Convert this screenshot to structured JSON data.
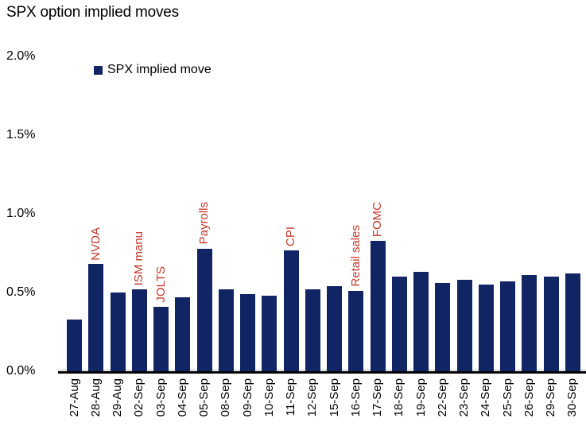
{
  "title": "SPX option implied moves",
  "legend": {
    "label": "SPX implied move"
  },
  "colors": {
    "bar": "#112463",
    "annotation": "#C4382B",
    "axis": "#000000",
    "baseline_gray": "#BFBFBF",
    "text": "#000000",
    "background": "#FFFFFF"
  },
  "chart_data": {
    "type": "bar",
    "title": "SPX option implied moves",
    "legend_entries": [
      "SPX implied move"
    ],
    "legend_position": "top-left",
    "grid": false,
    "ylabel": "",
    "xlabel": "",
    "unit": "%",
    "ylim": [
      0.0,
      2.0
    ],
    "ytick_step": 0.5,
    "yticks": [
      "2.0%",
      "1.5%",
      "1.0%",
      "0.5%",
      "0.0%"
    ],
    "categories": [
      "27-Aug",
      "28-Aug",
      "29-Aug",
      "02-Sep",
      "03-Sep",
      "04-Sep",
      "05-Sep",
      "08-Sep",
      "09-Sep",
      "10-Sep",
      "11-Sep",
      "12-Sep",
      "15-Sep",
      "16-Sep",
      "17-Sep",
      "18-Sep",
      "19-Sep",
      "22-Sep",
      "23-Sep",
      "24-Sep",
      "25-Sep",
      "26-Sep",
      "29-Sep",
      "30-Sep"
    ],
    "values": [
      0.33,
      0.68,
      0.5,
      0.52,
      0.41,
      0.47,
      0.78,
      0.52,
      0.49,
      0.48,
      0.77,
      0.52,
      0.54,
      0.51,
      0.83,
      0.6,
      0.63,
      0.56,
      0.58,
      0.55,
      0.57,
      0.61,
      0.6,
      0.62
    ],
    "annotations": [
      {
        "category": "28-Aug",
        "label": "NVDA"
      },
      {
        "category": "02-Sep",
        "label": "ISM manu"
      },
      {
        "category": "03-Sep",
        "label": "JOLTS"
      },
      {
        "category": "05-Sep",
        "label": "Payrolls"
      },
      {
        "category": "11-Sep",
        "label": "CPI"
      },
      {
        "category": "16-Sep",
        "label": "Retail sales"
      },
      {
        "category": "17-Sep",
        "label": "FOMC"
      }
    ]
  }
}
